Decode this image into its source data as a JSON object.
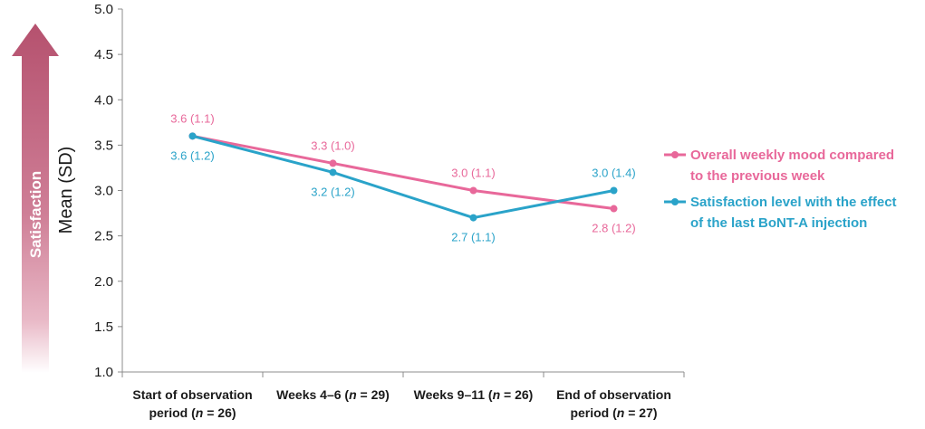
{
  "chart_data": {
    "type": "line",
    "ylabel": "Mean (SD)",
    "ylim": [
      1.0,
      5.0
    ],
    "yticks": [
      "5.0",
      "4.5",
      "4.0",
      "3.5",
      "3.0",
      "2.5",
      "2.0",
      "1.5",
      "1.0"
    ],
    "ytick_values": [
      5.0,
      4.5,
      4.0,
      3.5,
      3.0,
      2.5,
      2.0,
      1.5,
      1.0
    ],
    "categories": [
      [
        "Start of observation",
        "period (n = 26)"
      ],
      [
        "Weeks 4–6 (n = 29)"
      ],
      [
        "Weeks 9–11 (n = 26)"
      ],
      [
        "End of observation",
        "period (n = 27)"
      ]
    ],
    "series": [
      {
        "name_lines": [
          "Overall weekly mood compared",
          "to the previous week"
        ],
        "color": "#e8689a",
        "values": [
          3.6,
          3.3,
          3.0,
          2.8
        ],
        "labels": [
          "3.6 (1.1)",
          "3.3 (1.0)",
          "3.0 (1.1)",
          "2.8 (1.2)"
        ]
      },
      {
        "name_lines": [
          "Satisfaction level with the effect",
          "of the last BoNT-A injection"
        ],
        "color": "#2aa3c9",
        "values": [
          3.6,
          3.2,
          2.7,
          3.0
        ],
        "labels": [
          "3.6 (1.2)",
          "3.2 (1.2)",
          "2.7 (1.1)",
          "3.0 (1.4)"
        ]
      }
    ],
    "arrow_label": "Satisfaction"
  }
}
